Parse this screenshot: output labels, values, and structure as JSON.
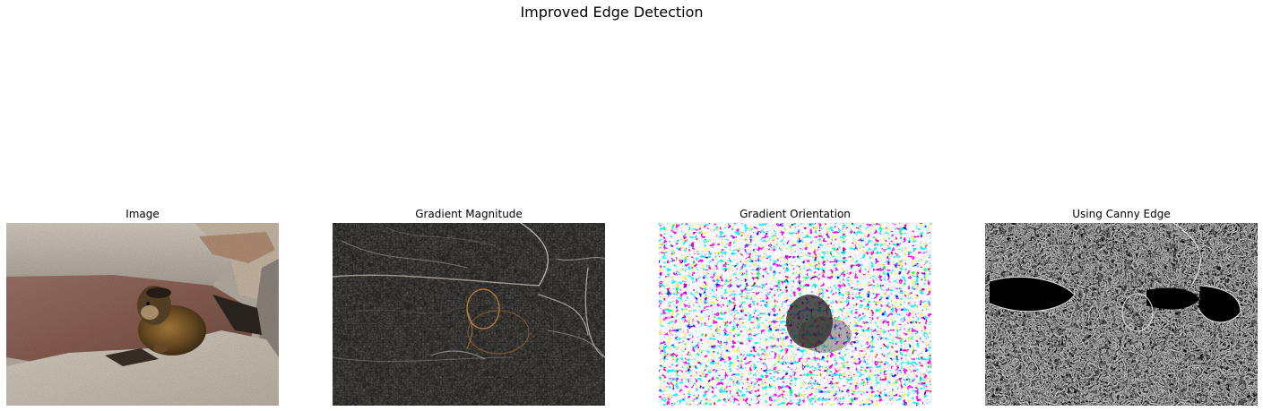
{
  "figure": {
    "title": "Improved Edge Detection"
  },
  "panels": [
    {
      "title": "Image"
    },
    {
      "title": "Gradient Magnitude"
    },
    {
      "title": "Gradient Orientation"
    },
    {
      "title": "Using Canny Edge"
    }
  ]
}
